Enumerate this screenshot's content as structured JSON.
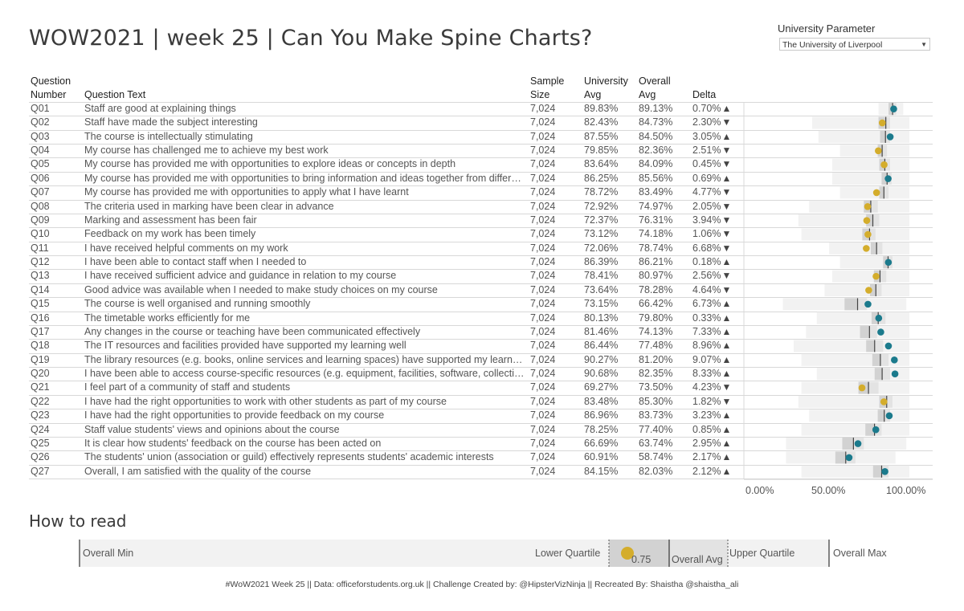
{
  "title": "WOW2021 | week 25 | Can You Make Spine Charts?",
  "parameter": {
    "label": "University Parameter",
    "value": "The University of Liverpool"
  },
  "headers": {
    "qnum_line1": "Question",
    "qnum_line2": "Number",
    "qtext": "Question Text",
    "sample_line1": "Sample",
    "sample_line2": "Size",
    "uni_line1": "University",
    "uni_line2": "Avg",
    "overall_line1": "Overall",
    "overall_line2": "Avg",
    "delta": "Delta"
  },
  "colors": {
    "above": "#1b7a8c",
    "below": "#d4ad2c",
    "range_light": "#f2f2f2",
    "range_mid": "#e3e3e3",
    "range_dark": "#d2d2d2",
    "avg_line": "#444444"
  },
  "chart_data": {
    "type": "table",
    "xlim": [
      0,
      100
    ],
    "xticks": [
      "0.00%",
      "50.00%",
      "100.00%"
    ],
    "rows": [
      {
        "q": "Q01",
        "text": "Staff are good at explaining things",
        "sample": "7,024",
        "uni": "89.83%",
        "overall": "89.13%",
        "delta": "0.70%",
        "dir": "up",
        "u": 89.83,
        "o": 89.13,
        "min": 80,
        "lq": 86.5,
        "uq": 91.5,
        "max": 96
      },
      {
        "q": "Q02",
        "text": "Staff have made the subject interesting",
        "sample": "7,024",
        "uni": "82.43%",
        "overall": "84.73%",
        "delta": "2.30%",
        "dir": "down",
        "u": 82.43,
        "o": 84.73,
        "min": 37,
        "lq": 80,
        "uq": 87.5,
        "max": 100
      },
      {
        "q": "Q03",
        "text": "The course is intellectually stimulating",
        "sample": "7,024",
        "uni": "87.55%",
        "overall": "84.50%",
        "delta": "3.05%",
        "dir": "up",
        "u": 87.55,
        "o": 84.5,
        "min": 41,
        "lq": 81,
        "uq": 87.5,
        "max": 100
      },
      {
        "q": "Q04",
        "text": "My course has challenged me to achieve my best work",
        "sample": "7,024",
        "uni": "79.85%",
        "overall": "82.36%",
        "delta": "2.51%",
        "dir": "down",
        "u": 79.85,
        "o": 82.36,
        "min": 55,
        "lq": 79.5,
        "uq": 85.5,
        "max": 100
      },
      {
        "q": "Q05",
        "text": "My course has provided me with opportunities to explore ideas or concepts in depth",
        "sample": "7,024",
        "uni": "83.64%",
        "overall": "84.09%",
        "delta": "0.45%",
        "dir": "down",
        "u": 83.64,
        "o": 84.09,
        "min": 50,
        "lq": 80.5,
        "uq": 87.5,
        "max": 100
      },
      {
        "q": "Q06",
        "text": "My course has provided me with opportunities to bring information and ideas together from different topics",
        "sample": "7,024",
        "uni": "86.25%",
        "overall": "85.56%",
        "delta": "0.69%",
        "dir": "up",
        "u": 86.25,
        "o": 85.56,
        "min": 50,
        "lq": 82,
        "uq": 88.5,
        "max": 100
      },
      {
        "q": "Q07",
        "text": "My course has provided me with opportunities to apply what I have learnt",
        "sample": "7,024",
        "uni": "78.72%",
        "overall": "83.49%",
        "delta": "4.77%",
        "dir": "down",
        "u": 78.72,
        "o": 83.49,
        "min": 55,
        "lq": 80.5,
        "uq": 86.5,
        "max": 100
      },
      {
        "q": "Q08",
        "text": "The criteria used in marking have been clear in advance",
        "sample": "7,024",
        "uni": "72.92%",
        "overall": "74.97%",
        "delta": "2.05%",
        "dir": "down",
        "u": 72.92,
        "o": 74.97,
        "min": 35,
        "lq": 70.5,
        "uq": 79.5,
        "max": 100
      },
      {
        "q": "Q09",
        "text": "Marking and assessment has been fair",
        "sample": "7,024",
        "uni": "72.37%",
        "overall": "76.31%",
        "delta": "3.94%",
        "dir": "down",
        "u": 72.37,
        "o": 76.31,
        "min": 28,
        "lq": 72,
        "uq": 80.5,
        "max": 100
      },
      {
        "q": "Q10",
        "text": "Feedback on my work has been timely",
        "sample": "7,024",
        "uni": "73.12%",
        "overall": "74.18%",
        "delta": "1.06%",
        "dir": "down",
        "u": 73.12,
        "o": 74.18,
        "min": 30,
        "lq": 69.5,
        "uq": 78,
        "max": 100
      },
      {
        "q": "Q11",
        "text": "I have received helpful comments on my work",
        "sample": "7,024",
        "uni": "72.06%",
        "overall": "78.74%",
        "delta": "6.68%",
        "dir": "down",
        "u": 72.06,
        "o": 78.74,
        "min": 48,
        "lq": 75,
        "uq": 82.5,
        "max": 100
      },
      {
        "q": "Q12",
        "text": "I have been able to contact staff when I needed to",
        "sample": "7,024",
        "uni": "86.39%",
        "overall": "86.21%",
        "delta": "0.18%",
        "dir": "up",
        "u": 86.39,
        "o": 86.21,
        "min": 55,
        "lq": 83,
        "uq": 89,
        "max": 100
      },
      {
        "q": "Q13",
        "text": "I have received sufficient advice and guidance in relation to my course",
        "sample": "7,024",
        "uni": "78.41%",
        "overall": "80.97%",
        "delta": "2.56%",
        "dir": "down",
        "u": 78.41,
        "o": 80.97,
        "min": 50,
        "lq": 77,
        "uq": 85,
        "max": 100
      },
      {
        "q": "Q14",
        "text": "Good advice was available when I needed to make study choices on my course",
        "sample": "7,024",
        "uni": "73.64%",
        "overall": "78.28%",
        "delta": "4.64%",
        "dir": "down",
        "u": 73.64,
        "o": 78.28,
        "min": 45,
        "lq": 74.5,
        "uq": 82,
        "max": 100
      },
      {
        "q": "Q15",
        "text": "The course is well organised and running smoothly",
        "sample": "7,024",
        "uni": "73.15%",
        "overall": "66.42%",
        "delta": "6.73%",
        "dir": "up",
        "u": 73.15,
        "o": 66.42,
        "min": 18,
        "lq": 58,
        "uq": 72.5,
        "max": 98
      },
      {
        "q": "Q16",
        "text": "The timetable works efficiently for me",
        "sample": "7,024",
        "uni": "80.13%",
        "overall": "79.80%",
        "delta": "0.33%",
        "dir": "up",
        "u": 80.13,
        "o": 79.8,
        "min": 40,
        "lq": 75.5,
        "uq": 84.5,
        "max": 100
      },
      {
        "q": "Q17",
        "text": "Any changes in the course or teaching have been communicated effectively",
        "sample": "7,024",
        "uni": "81.46%",
        "overall": "74.13%",
        "delta": "7.33%",
        "dir": "up",
        "u": 81.46,
        "o": 74.13,
        "min": 33,
        "lq": 68,
        "uq": 79,
        "max": 100
      },
      {
        "q": "Q18",
        "text": "The IT resources and facilities provided have supported my learning well",
        "sample": "7,024",
        "uni": "86.44%",
        "overall": "77.48%",
        "delta": "8.96%",
        "dir": "up",
        "u": 86.44,
        "o": 77.48,
        "min": 25,
        "lq": 72,
        "uq": 83,
        "max": 100
      },
      {
        "q": "Q19",
        "text": "The library resources (e.g. books, online services and learning spaces) have supported my learning well",
        "sample": "7,024",
        "uni": "90.27%",
        "overall": "81.20%",
        "delta": "9.07%",
        "dir": "up",
        "u": 90.27,
        "o": 81.2,
        "min": 30,
        "lq": 76,
        "uq": 86.5,
        "max": 100
      },
      {
        "q": "Q20",
        "text": "I have been able to access course-specific resources (e.g. equipment, facilities, software, collections) when I needed to",
        "sample": "7,024",
        "uni": "90.68%",
        "overall": "82.35%",
        "delta": "8.33%",
        "dir": "up",
        "u": 90.68,
        "o": 82.35,
        "min": 40,
        "lq": 77.5,
        "uq": 87.5,
        "max": 100
      },
      {
        "q": "Q21",
        "text": "I feel part of a community of staff and students",
        "sample": "7,024",
        "uni": "69.27%",
        "overall": "73.50%",
        "delta": "4.23%",
        "dir": "down",
        "u": 69.27,
        "o": 73.5,
        "min": 30,
        "lq": 67,
        "uq": 80,
        "max": 100
      },
      {
        "q": "Q22",
        "text": "I have had the right opportunities to work with other students as part of my course",
        "sample": "7,024",
        "uni": "83.48%",
        "overall": "85.30%",
        "delta": "1.82%",
        "dir": "down",
        "u": 83.48,
        "o": 85.3,
        "min": 28,
        "lq": 80.5,
        "uq": 89,
        "max": 100
      },
      {
        "q": "Q23",
        "text": "I have had the right opportunities to provide feedback on my course",
        "sample": "7,024",
        "uni": "86.96%",
        "overall": "83.73%",
        "delta": "3.23%",
        "dir": "up",
        "u": 86.96,
        "o": 83.73,
        "min": 35,
        "lq": 79.5,
        "uq": 87.5,
        "max": 100
      },
      {
        "q": "Q24",
        "text": "Staff value students' views and opinions about the course",
        "sample": "7,024",
        "uni": "78.25%",
        "overall": "77.40%",
        "delta": "0.85%",
        "dir": "up",
        "u": 78.25,
        "o": 77.4,
        "min": 30,
        "lq": 71.5,
        "uq": 82,
        "max": 100
      },
      {
        "q": "Q25",
        "text": "It is clear how students' feedback on the course has been acted on",
        "sample": "7,024",
        "uni": "66.69%",
        "overall": "63.74%",
        "delta": "2.95%",
        "dir": "up",
        "u": 66.69,
        "o": 63.74,
        "min": 20,
        "lq": 56.5,
        "uq": 70.5,
        "max": 98
      },
      {
        "q": "Q26",
        "text": "The students' union (association or guild) effectively represents students' academic interests",
        "sample": "7,024",
        "uni": "60.91%",
        "overall": "58.74%",
        "delta": "2.17%",
        "dir": "up",
        "u": 60.91,
        "o": 58.74,
        "min": 20,
        "lq": 52,
        "uq": 65,
        "max": 91
      },
      {
        "q": "Q27",
        "text": "Overall, I am satisfied with the quality of the course",
        "sample": "7,024",
        "uni": "84.15%",
        "overall": "82.03%",
        "delta": "2.12%",
        "dir": "up",
        "u": 84.15,
        "o": 82.03,
        "min": 30,
        "lq": 76.5,
        "uq": 86.5,
        "max": 100
      }
    ]
  },
  "how_to_read": {
    "title": "How to read",
    "overall_min": "Overall Min",
    "lower_quartile": "Lower Quartile",
    "value": "0.75",
    "overall_avg": "Overall Avg",
    "upper_quartile": "Upper Quartile",
    "overall_max": "Overall Max"
  },
  "footer": "#WoW2021 Week 25  ||  Data: officeforstudents.org.uk  ||  Challenge Created by: @HipsterVizNinja  ||  Recreated By: Shaistha @shaistha_ali"
}
